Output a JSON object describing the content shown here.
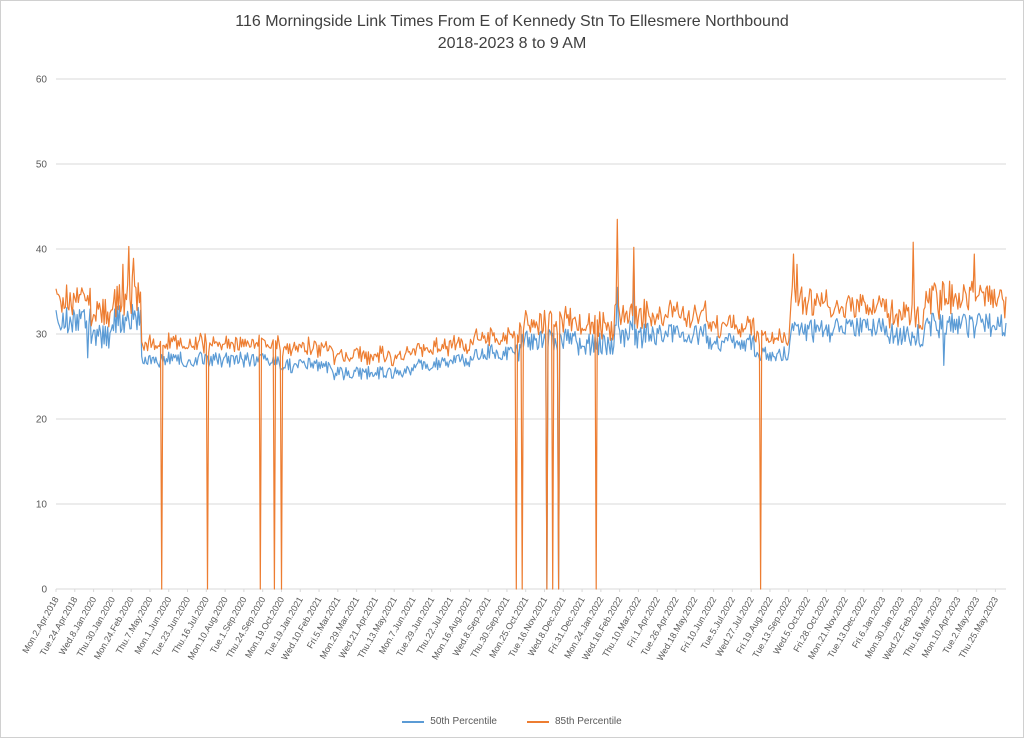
{
  "page": {
    "background": "#ffffff",
    "border_color": "#d0d0d0"
  },
  "chart": {
    "title_line1": "116 Morningside Link Times From E of Kennedy Stn To Ellesmere Northbound",
    "title_line2": "2018-2023 8 to 9 AM"
  },
  "chart_data": {
    "type": "line",
    "title": "116 Morningside Link Times From E of Kennedy Stn To Ellesmere Northbound",
    "subtitle": "2018-2023 8 to 9 AM",
    "xlabel": "",
    "ylabel": "",
    "ylim": [
      0,
      60
    ],
    "yticks": [
      0,
      10,
      20,
      30,
      40,
      50,
      60
    ],
    "grid": true,
    "grid_color": "#d9d9d9",
    "axis_text_color": "#595959",
    "legend_position": "bottom",
    "seed": 20180402,
    "n_points": 810,
    "label_every": 16,
    "x_tick_labels": [
      "Mon.2.Apr.2018",
      "Tue.24.Apr.2018",
      "Wed.8.Jan.2020",
      "Thu.30.Jan.2020",
      "Mon.24.Feb.2020",
      "Thu.7.May.2020",
      "Mon.1.Jun.2020",
      "Tue.23.Jun.2020",
      "Thu.16.Jul.2020",
      "Mon.10.Aug.2020",
      "Tue.1.Sep.2020",
      "Thu.24.Sep.2020",
      "Mon.19.Oct.2020",
      "Tue.19.Jan.2021",
      "Wed.10.Feb.2021",
      "Fri.5.Mar.2021",
      "Mon.29.Mar.2021",
      "Wed.21.Apr.2021",
      "Thu.13.May.2021",
      "Mon.7.Jun.2021",
      "Tue.29.Jun.2021",
      "Thu.22.Jul.2021",
      "Mon.16.Aug.2021",
      "Wed.8.Sep.2021",
      "Thu.30.Sep.2021",
      "Mon.25.Oct.2021",
      "Tue.16.Nov.2021",
      "Wed.8.Dec.2021",
      "Fri.31.Dec.2021",
      "Mon.24.Jan.2022",
      "Wed.16.Feb.2022",
      "Thu.10.Mar.2022",
      "Fri.1.Apr.2022",
      "Tue.26.Apr.2022",
      "Wed.18.May.2022",
      "Fri.10.Jun.2022",
      "Tue.5.Jul.2022",
      "Wed.27.Jul.2022",
      "Fri.19.Aug.2022",
      "Tue.13.Sep.2022",
      "Wed.5.Oct.2022",
      "Fri.28.Oct.2022",
      "Mon.21.Nov.2022",
      "Tue.13.Dec.2022",
      "Fri.6.Jan.2023",
      "Mon.30.Jan.2023",
      "Wed.22.Feb.2023",
      "Thu.16.Mar.2023",
      "Mon.10.Apr.2023",
      "Tue.2.May.2023",
      "Thu.25.May.2023"
    ],
    "series": [
      {
        "name": "50th Percentile",
        "color": "#5b9bd5",
        "segments": [
          {
            "from": 0,
            "to": 30,
            "mean": 31.6,
            "noise": 1.6
          },
          {
            "from": 30,
            "to": 46,
            "mean": 29.6,
            "noise": 1.5
          },
          {
            "from": 46,
            "to": 73,
            "mean": 31.8,
            "noise": 1.7
          },
          {
            "from": 73,
            "to": 95,
            "mean": 26.8,
            "noise": 0.8
          },
          {
            "from": 95,
            "to": 190,
            "mean": 27.0,
            "noise": 0.9
          },
          {
            "from": 190,
            "to": 235,
            "mean": 26.3,
            "noise": 0.9
          },
          {
            "from": 235,
            "to": 305,
            "mean": 25.4,
            "noise": 0.8
          },
          {
            "from": 305,
            "to": 355,
            "mean": 26.2,
            "noise": 0.8,
            "drift": 0.8
          },
          {
            "from": 355,
            "to": 395,
            "mean": 27.8,
            "noise": 1.0
          },
          {
            "from": 395,
            "to": 445,
            "mean": 29.2,
            "noise": 1.4
          },
          {
            "from": 445,
            "to": 475,
            "mean": 28.8,
            "noise": 1.3
          },
          {
            "from": 475,
            "to": 500,
            "mean": 30.0,
            "noise": 1.7
          },
          {
            "from": 500,
            "to": 555,
            "mean": 30.0,
            "noise": 1.3
          },
          {
            "from": 555,
            "to": 595,
            "mean": 29.0,
            "noise": 1.1
          },
          {
            "from": 595,
            "to": 625,
            "mean": 27.6,
            "noise": 0.9
          },
          {
            "from": 625,
            "to": 660,
            "mean": 30.4,
            "noise": 1.4
          },
          {
            "from": 660,
            "to": 705,
            "mean": 30.8,
            "noise": 1.1
          },
          {
            "from": 705,
            "to": 740,
            "mean": 29.8,
            "noise": 1.4
          },
          {
            "from": 740,
            "to": 810,
            "mean": 31.0,
            "noise": 1.5
          }
        ],
        "spikes": {
          "27": 27.2,
          "478": 35.5,
          "492": 38.8,
          "756": 26.3
        },
        "dropouts": [
          418,
          428
        ]
      },
      {
        "name": "85th Percentile",
        "color": "#ed7d31",
        "gap_segments": [
          {
            "from": 0,
            "to": 73,
            "gap": 2.6,
            "noise": 0.9
          },
          {
            "from": 73,
            "to": 190,
            "gap": 1.9,
            "noise": 0.6
          },
          {
            "from": 190,
            "to": 305,
            "gap": 2.0,
            "noise": 0.6
          },
          {
            "from": 305,
            "to": 395,
            "gap": 1.9,
            "noise": 0.6
          },
          {
            "from": 395,
            "to": 475,
            "gap": 2.2,
            "noise": 0.8
          },
          {
            "from": 475,
            "to": 555,
            "gap": 2.3,
            "noise": 0.8
          },
          {
            "from": 555,
            "to": 625,
            "gap": 2.0,
            "noise": 0.7
          },
          {
            "from": 625,
            "to": 660,
            "gap": 3.2,
            "noise": 1.2
          },
          {
            "from": 660,
            "to": 705,
            "gap": 2.4,
            "noise": 0.8
          },
          {
            "from": 705,
            "to": 740,
            "gap": 2.6,
            "noise": 1.0
          },
          {
            "from": 740,
            "to": 810,
            "gap": 3.2,
            "noise": 1.2
          }
        ],
        "spikes": {
          "57": 38.2,
          "62": 40.3,
          "66": 38.9,
          "478": 43.5,
          "492": 40.2,
          "628": 39.4,
          "631": 38.2,
          "730": 40.8,
          "782": 39.4
        },
        "dropouts": [
          90,
          129,
          174,
          186,
          192,
          392,
          397,
          418,
          423,
          428,
          460,
          600
        ]
      }
    ]
  }
}
